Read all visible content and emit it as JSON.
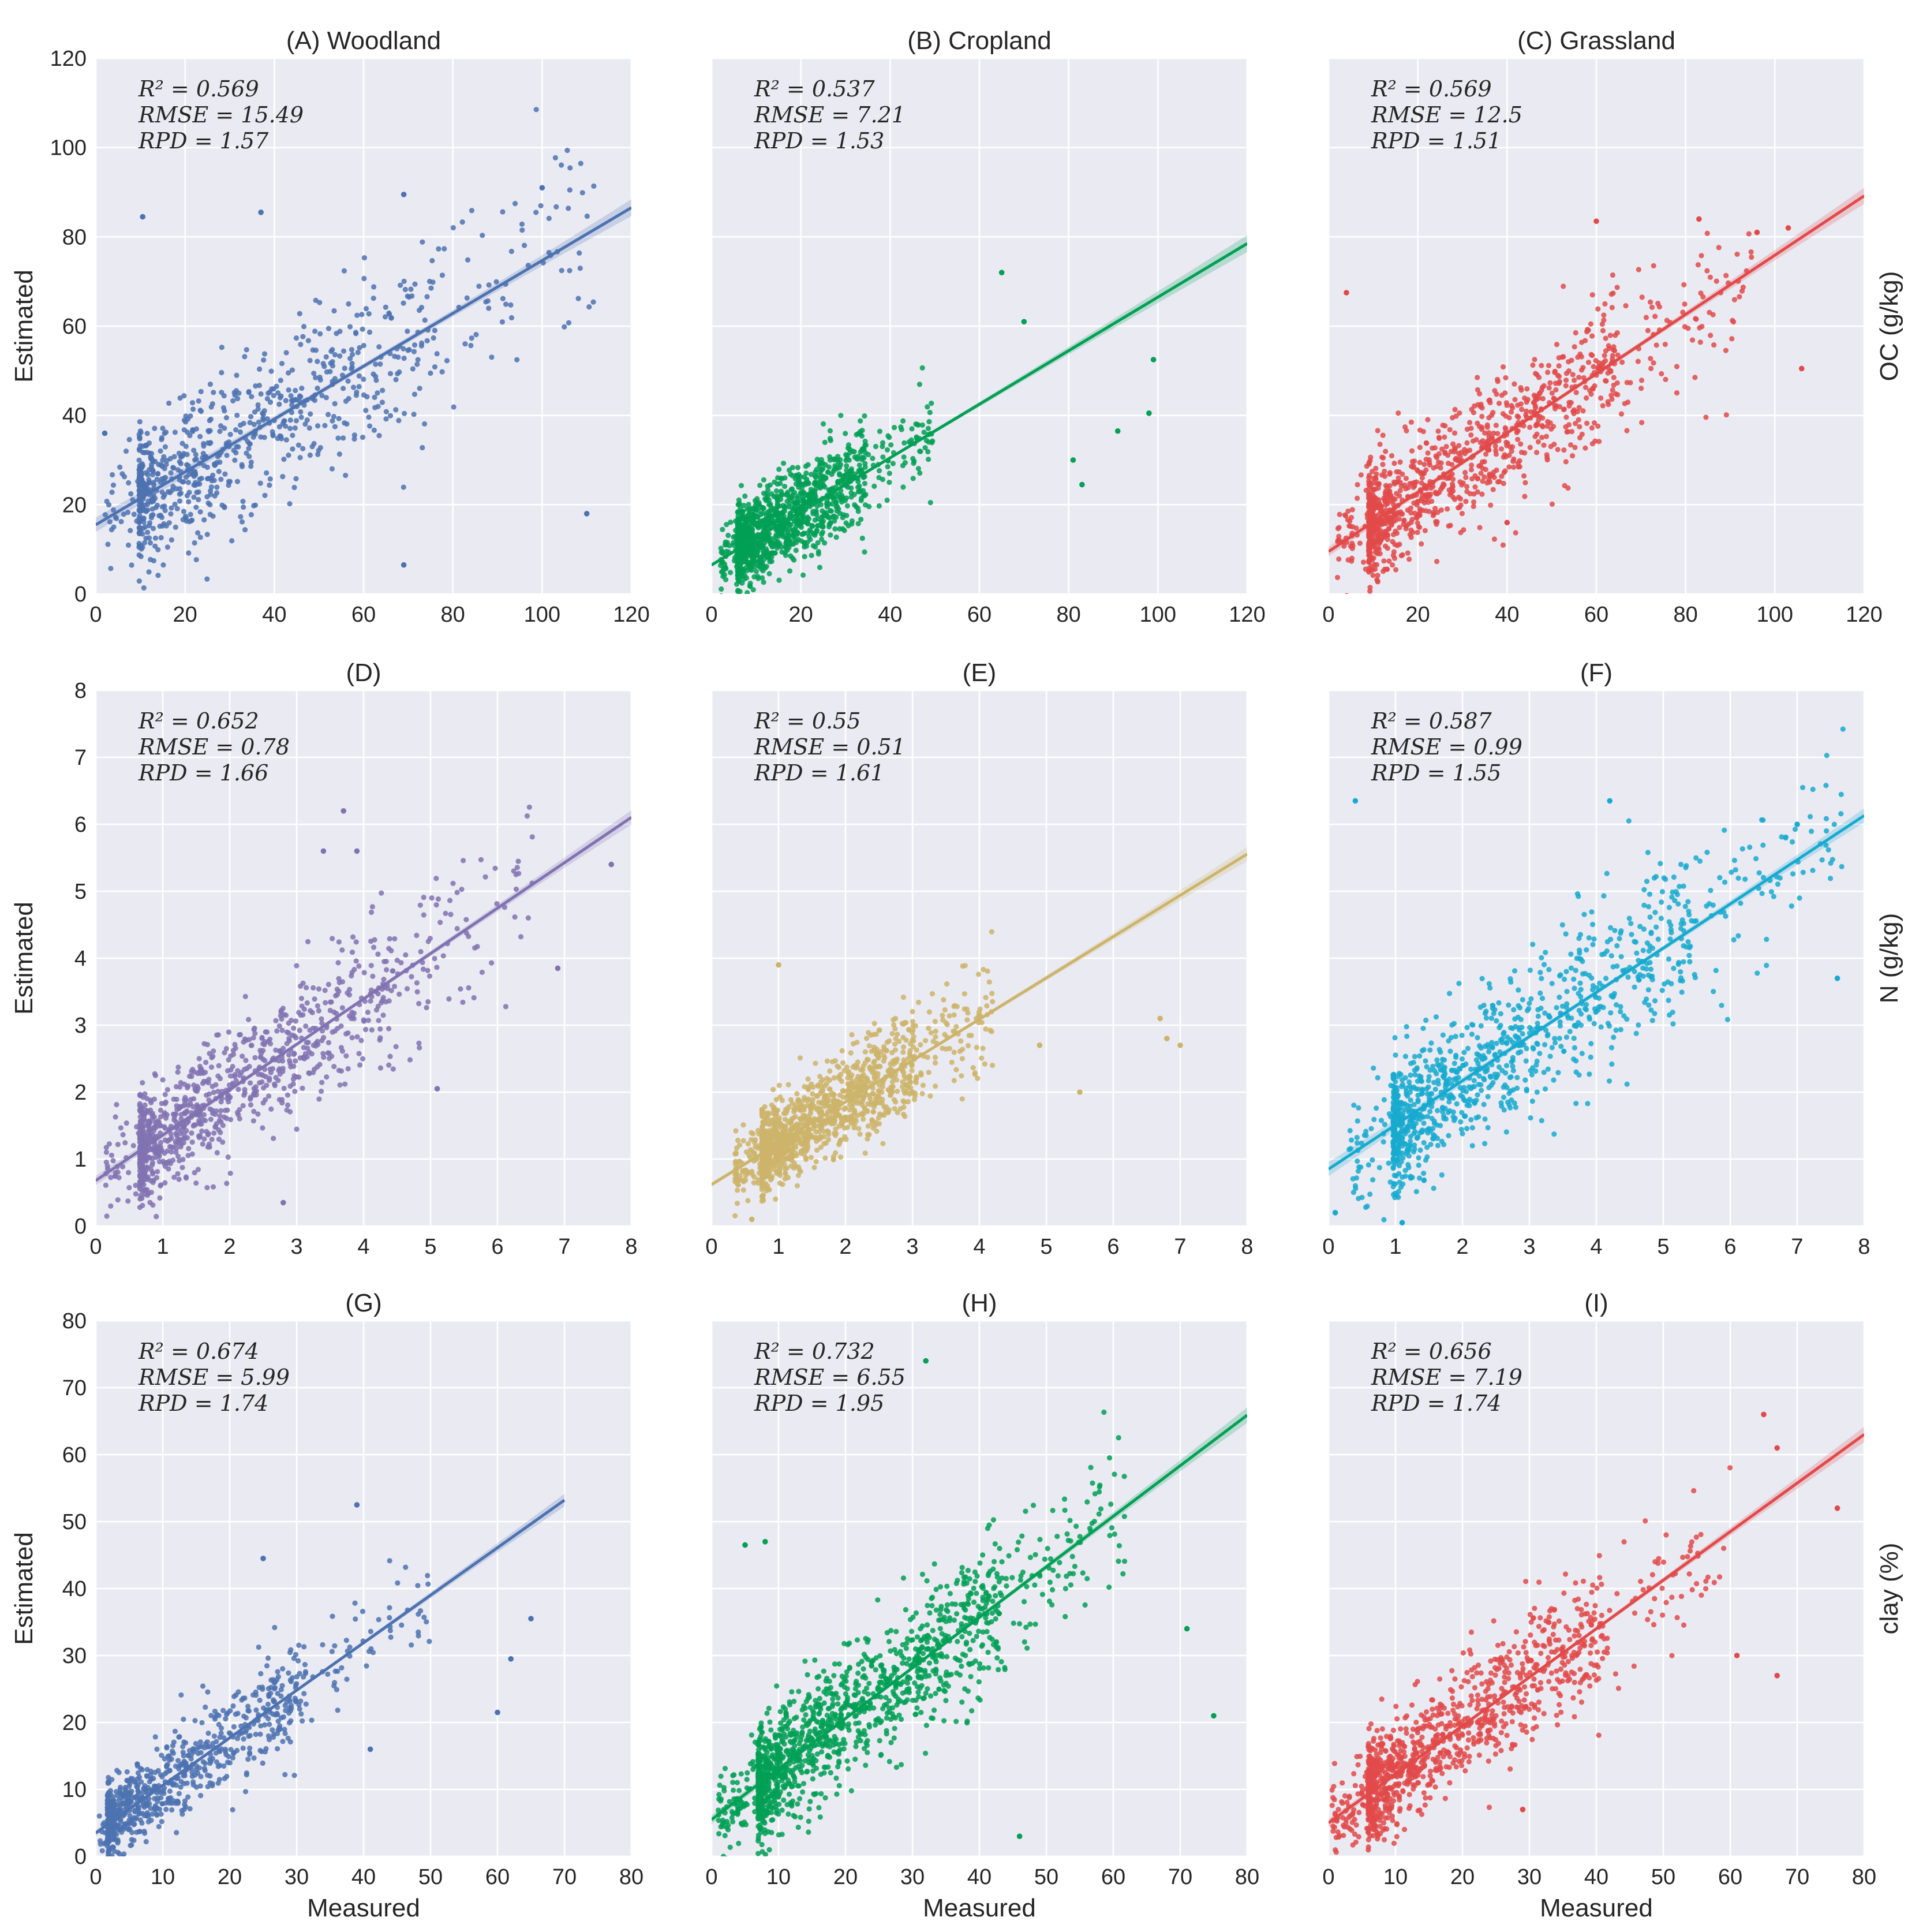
{
  "chart_data": [
    {
      "panel": "A",
      "type": "scatter",
      "title": "(A) Woodland",
      "row_label": "",
      "xlabel": "",
      "ylabel": "Estimated",
      "xlim": [
        0,
        120
      ],
      "ylim": [
        0,
        120
      ],
      "xticks": [
        0,
        20,
        40,
        60,
        80,
        100,
        120
      ],
      "yticks": [
        0,
        20,
        40,
        60,
        80,
        100,
        120
      ],
      "color": "#4C72B0",
      "stats": [
        "R² = 0.569",
        "RMSE = 15.49",
        "RPD = 1.57"
      ],
      "fit": {
        "intercept": 15.5,
        "slope": 0.592,
        "x_start": 0,
        "x_end": 120
      },
      "cloud": {
        "n": 850,
        "x_min": 2,
        "x_max": 112,
        "x_mode": 24,
        "noise_sd": 10.0,
        "seed": 11
      },
      "points": [
        [
          10.5,
          84.5
        ],
        [
          37,
          85.5
        ],
        [
          69,
          89.5
        ],
        [
          100,
          91
        ],
        [
          110,
          18
        ],
        [
          69,
          6.5
        ],
        [
          2,
          36
        ]
      ]
    },
    {
      "panel": "B",
      "type": "scatter",
      "title": "(B) Cropland",
      "row_label": "",
      "xlabel": "",
      "ylabel": "",
      "xlim": [
        0,
        120
      ],
      "ylim": [
        0,
        120
      ],
      "xticks": [
        0,
        20,
        40,
        60,
        80,
        100,
        120
      ],
      "yticks": [
        0,
        20,
        40,
        60,
        80,
        100,
        120
      ],
      "color": "#00A055",
      "stats": [
        "R² = 0.537",
        "RMSE = 7.21",
        "RPD = 1.53"
      ],
      "fit": {
        "intercept": 6.5,
        "slope": 0.6,
        "x_start": 0,
        "x_end": 120
      },
      "cloud": {
        "n": 1300,
        "x_min": 2,
        "x_max": 50,
        "x_mode": 13,
        "noise_sd": 5.5,
        "seed": 23
      },
      "points": [
        [
          65,
          72
        ],
        [
          99,
          52.5
        ],
        [
          98,
          40.5
        ],
        [
          91,
          36.5
        ],
        [
          83,
          24.5
        ],
        [
          70,
          61
        ],
        [
          81,
          30
        ]
      ]
    },
    {
      "panel": "C",
      "type": "scatter",
      "title": "(C) Grassland",
      "row_label": "OC (g/kg)",
      "xlabel": "",
      "ylabel": "",
      "xlim": [
        0,
        120
      ],
      "ylim": [
        0,
        120
      ],
      "xticks": [
        0,
        20,
        40,
        60,
        80,
        100,
        120
      ],
      "yticks": [
        0,
        20,
        40,
        60,
        80,
        100,
        120
      ],
      "color": "#E24A4A",
      "stats": [
        "R² = 0.569",
        "RMSE = 12.5",
        "RPD = 1.51"
      ],
      "fit": {
        "intercept": 9.5,
        "slope": 0.664,
        "x_start": 0,
        "x_end": 120
      },
      "cloud": {
        "n": 1100,
        "x_min": 2,
        "x_max": 95,
        "x_mode": 22,
        "noise_sd": 8.0,
        "seed": 37
      },
      "points": [
        [
          4,
          67.5
        ],
        [
          60,
          83.5
        ],
        [
          83,
          84
        ],
        [
          96,
          81
        ],
        [
          103,
          82
        ],
        [
          106,
          50.5
        ],
        [
          40,
          16
        ]
      ]
    },
    {
      "panel": "D",
      "type": "scatter",
      "title": "(D)",
      "row_label": "",
      "xlabel": "",
      "ylabel": "Estimated",
      "xlim": [
        0,
        8
      ],
      "ylim": [
        0,
        8
      ],
      "xticks": [
        0,
        1,
        2,
        3,
        4,
        5,
        6,
        7,
        8
      ],
      "yticks": [
        0,
        1,
        2,
        3,
        4,
        5,
        6,
        7,
        8
      ],
      "color": "#8172B2",
      "stats": [
        "R² = 0.652",
        "RMSE = 0.78",
        "RPD = 1.66"
      ],
      "fit": {
        "intercept": 0.68,
        "slope": 0.678,
        "x_start": 0,
        "x_end": 8
      },
      "cloud": {
        "n": 1000,
        "x_min": 0.15,
        "x_max": 6.6,
        "x_mode": 1.6,
        "noise_sd": 0.5,
        "seed": 41
      },
      "points": [
        [
          3.7,
          6.2
        ],
        [
          3.4,
          5.6
        ],
        [
          3.9,
          5.6
        ],
        [
          7.7,
          5.4
        ],
        [
          2.8,
          0.35
        ],
        [
          5.1,
          2.05
        ],
        [
          6.9,
          3.85
        ]
      ]
    },
    {
      "panel": "E",
      "type": "scatter",
      "title": "(E)",
      "row_label": "",
      "xlabel": "",
      "ylabel": "",
      "xlim": [
        0,
        8
      ],
      "ylim": [
        0,
        8
      ],
      "xticks": [
        0,
        1,
        2,
        3,
        4,
        5,
        6,
        7,
        8
      ],
      "yticks": [
        0,
        1,
        2,
        3,
        4,
        5,
        6,
        7,
        8
      ],
      "color": "#CCB46A",
      "stats": [
        "R² = 0.55",
        "RMSE = 0.51",
        "RPD = 1.61"
      ],
      "fit": {
        "intercept": 0.62,
        "slope": 0.617,
        "x_start": 0,
        "x_end": 8
      },
      "cloud": {
        "n": 1300,
        "x_min": 0.35,
        "x_max": 4.2,
        "x_mode": 1.5,
        "noise_sd": 0.35,
        "seed": 53
      },
      "points": [
        [
          1.0,
          3.9
        ],
        [
          5.5,
          2.0
        ],
        [
          6.7,
          3.1
        ],
        [
          7.0,
          2.7
        ],
        [
          6.8,
          2.8
        ],
        [
          4.9,
          2.7
        ],
        [
          0.6,
          0.1
        ]
      ]
    },
    {
      "panel": "F",
      "type": "scatter",
      "title": "(F)",
      "row_label": "N (g/kg)",
      "xlabel": "",
      "ylabel": "",
      "xlim": [
        0,
        8
      ],
      "ylim": [
        0,
        8
      ],
      "xticks": [
        0,
        1,
        2,
        3,
        4,
        5,
        6,
        7,
        8
      ],
      "yticks": [
        0,
        1,
        2,
        3,
        4,
        5,
        6,
        7,
        8
      ],
      "color": "#17AACF",
      "stats": [
        "R² = 0.587",
        "RMSE = 0.99",
        "RPD = 1.55"
      ],
      "fit": {
        "intercept": 0.85,
        "slope": 0.66,
        "x_start": 0,
        "x_end": 8
      },
      "cloud": {
        "n": 1100,
        "x_min": 0.3,
        "x_max": 7.7,
        "x_mode": 2.2,
        "noise_sd": 0.6,
        "seed": 67
      },
      "points": [
        [
          0.4,
          6.35
        ],
        [
          4.2,
          6.35
        ],
        [
          7.0,
          6.0
        ],
        [
          7.6,
          3.7
        ],
        [
          0.1,
          0.2
        ],
        [
          1.1,
          0.05
        ]
      ]
    },
    {
      "panel": "G",
      "type": "scatter",
      "title": "(G)",
      "row_label": "",
      "xlabel": "Measured",
      "ylabel": "Estimated",
      "xlim": [
        0,
        80
      ],
      "ylim": [
        0,
        80
      ],
      "xticks": [
        0,
        10,
        20,
        30,
        40,
        50,
        60,
        70,
        80
      ],
      "yticks": [
        0,
        10,
        20,
        30,
        40,
        50,
        60,
        70,
        80
      ],
      "color": "#4C72B0",
      "stats": [
        "R² = 0.674",
        "RMSE = 5.99",
        "RPD = 1.74"
      ],
      "fit": {
        "intercept": 3.5,
        "slope": 0.71,
        "x_start": 0,
        "x_end": 70
      },
      "cloud": {
        "n": 800,
        "x_min": 0.5,
        "x_max": 50,
        "x_mode": 4,
        "noise_sd": 3.8,
        "seed": 79
      },
      "points": [
        [
          39,
          52.5
        ],
        [
          25,
          44.5
        ],
        [
          60,
          21.5
        ],
        [
          65,
          35.5
        ],
        [
          62,
          29.5
        ],
        [
          41,
          16
        ]
      ]
    },
    {
      "panel": "H",
      "type": "scatter",
      "title": "(H)",
      "row_label": "",
      "xlabel": "Measured",
      "ylabel": "",
      "xlim": [
        0,
        80
      ],
      "ylim": [
        0,
        80
      ],
      "xticks": [
        0,
        10,
        20,
        30,
        40,
        50,
        60,
        70,
        80
      ],
      "yticks": [
        0,
        10,
        20,
        30,
        40,
        50,
        60,
        70,
        80
      ],
      "color": "#00A055",
      "stats": [
        "R² = 0.732",
        "RMSE = 6.55",
        "RPD = 1.95"
      ],
      "fit": {
        "intercept": 5.5,
        "slope": 0.755,
        "x_start": 0,
        "x_end": 80
      },
      "cloud": {
        "n": 1400,
        "x_min": 1,
        "x_max": 62,
        "x_mode": 18,
        "noise_sd": 5.0,
        "seed": 83
      },
      "points": [
        [
          32,
          74
        ],
        [
          75,
          21
        ],
        [
          71,
          34
        ],
        [
          8,
          47
        ],
        [
          46,
          3
        ],
        [
          5,
          46.5
        ]
      ]
    },
    {
      "panel": "I",
      "type": "scatter",
      "title": "(I)",
      "row_label": "clay (%)",
      "xlabel": "Measured",
      "ylabel": "",
      "xlim": [
        0,
        80
      ],
      "ylim": [
        0,
        80
      ],
      "xticks": [
        0,
        10,
        20,
        30,
        40,
        50,
        60,
        70,
        80
      ],
      "yticks": [
        0,
        10,
        20,
        30,
        40,
        50,
        60,
        70,
        80
      ],
      "color": "#E24A4A",
      "stats": [
        "R² = 0.656",
        "RMSE = 7.19",
        "RPD = 1.74"
      ],
      "fit": {
        "intercept": 5.0,
        "slope": 0.725,
        "x_start": 0,
        "x_end": 80
      },
      "cloud": {
        "n": 1100,
        "x_min": 0.5,
        "x_max": 60,
        "x_mode": 16,
        "noise_sd": 4.8,
        "seed": 97
      },
      "points": [
        [
          65,
          66
        ],
        [
          67,
          61
        ],
        [
          76,
          52
        ],
        [
          67,
          27
        ],
        [
          61,
          30
        ],
        [
          29,
          7
        ]
      ]
    }
  ]
}
